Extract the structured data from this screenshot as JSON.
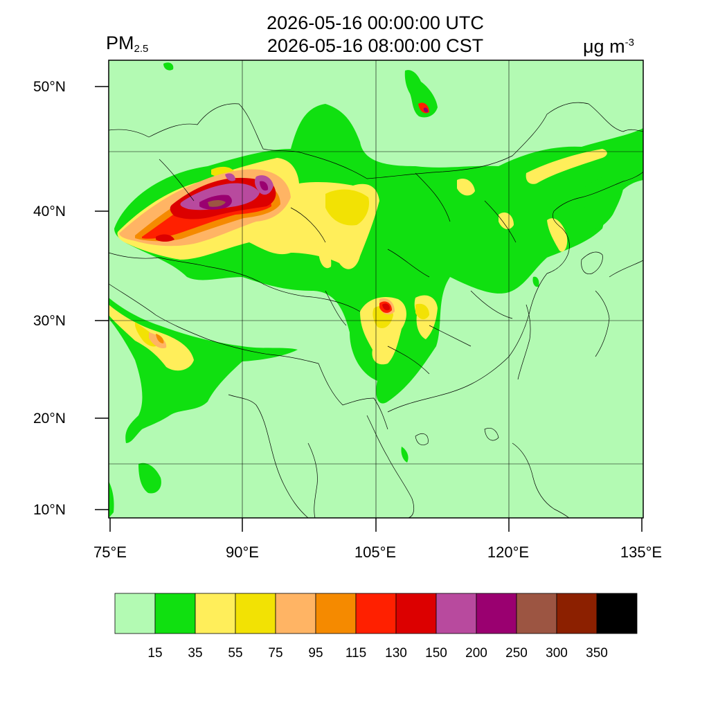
{
  "title": {
    "line1": "2026-05-16 00:00:00 UTC",
    "line2": "2026-05-16 08:00:00 CST"
  },
  "variable": {
    "name": "PM",
    "subscript": "2.5"
  },
  "units": {
    "base": "μg m",
    "exponent": "-3"
  },
  "map": {
    "lon_range": [
      75,
      135
    ],
    "lat_range": [
      9,
      52
    ],
    "lat_ticks": [
      {
        "value": 10,
        "label": "10°N"
      },
      {
        "value": 20,
        "label": "20°N"
      },
      {
        "value": 30,
        "label": "30°N"
      },
      {
        "value": 40,
        "label": "40°N"
      },
      {
        "value": 50,
        "label": "50°N"
      }
    ],
    "lon_ticks": [
      {
        "value": 75,
        "label": "75°E"
      },
      {
        "value": 90,
        "label": "90°E"
      },
      {
        "value": 105,
        "label": "105°E"
      },
      {
        "value": 120,
        "label": "120°E"
      },
      {
        "value": 135,
        "label": "135°E"
      }
    ],
    "grid_lons": [
      90,
      105,
      120
    ],
    "grid_lats": [
      15,
      30,
      45
    ]
  },
  "colorbar": {
    "colors": [
      "#b3fab3",
      "#10e010",
      "#ffee5a",
      "#f2e204",
      "#ffb464",
      "#f58a00",
      "#ff2000",
      "#dc0000",
      "#b84a9e",
      "#9a0070",
      "#9c5542",
      "#8c2000",
      "#000000"
    ],
    "labels": [
      "15",
      "35",
      "55",
      "75",
      "95",
      "115",
      "130",
      "150",
      "200",
      "250",
      "300",
      "350"
    ]
  }
}
